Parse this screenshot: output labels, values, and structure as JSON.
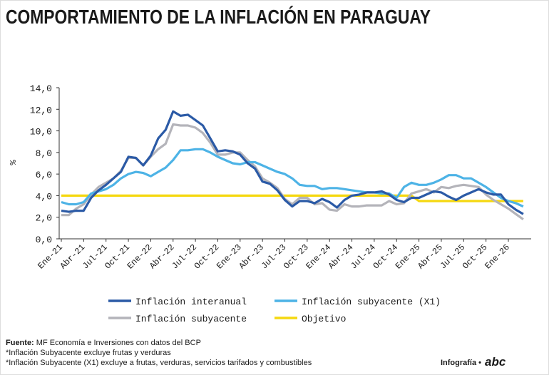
{
  "chart_data": {
    "type": "line",
    "title": "COMPORTAMIENTO DE LA INFLACIÓN EN PARAGUAY",
    "ylabel": "%",
    "categories": [
      "Ene-21",
      null,
      null,
      "Abr-21",
      null,
      null,
      "Jul-21",
      null,
      null,
      "Oct-21",
      null,
      null,
      "Ene-22",
      null,
      null,
      "Abr-22",
      null,
      null,
      "Jul-22",
      null,
      null,
      "Oct-22",
      null,
      null,
      "Ene-23",
      null,
      null,
      "Abr-23",
      null,
      null,
      "Jul-23",
      null,
      null,
      "Oct-23",
      null,
      null,
      "Ene-24",
      null,
      null,
      "Abr-24",
      null,
      null,
      "Jul-24",
      null,
      null,
      "Oct-24",
      null,
      null,
      "Ene-25",
      null,
      null,
      "Abr-25",
      null,
      null,
      "Jul-25",
      null,
      null,
      "Oct-25",
      null,
      null,
      "Ene-26",
      null,
      null
    ],
    "series": [
      {
        "name": "Inflación interanual",
        "color": "#2b5aa6",
        "values": [
          2.6,
          2.5,
          2.6,
          2.6,
          3.8,
          4.5,
          5.0,
          5.6,
          6.2,
          7.6,
          7.5,
          6.8,
          7.7,
          9.3,
          10.1,
          11.8,
          11.4,
          11.5,
          11.0,
          10.5,
          9.3,
          8.1,
          8.2,
          8.1,
          7.8,
          7.0,
          6.5,
          5.3,
          5.1,
          4.5,
          3.6,
          3.0,
          3.5,
          3.5,
          3.3,
          3.7,
          3.4,
          2.9,
          3.6,
          4.0,
          4.1,
          4.3,
          4.3,
          4.4,
          4.1,
          3.6,
          3.4,
          3.8,
          3.8,
          4.1,
          4.4,
          4.3,
          3.9,
          3.6,
          4.0,
          4.3,
          4.6,
          4.3,
          4.1,
          4.1,
          3.2,
          2.7,
          2.3
        ]
      },
      {
        "name": "Inflación subyacente (X1)",
        "color": "#4db3e6",
        "values": [
          3.4,
          3.2,
          3.2,
          3.4,
          4.2,
          4.4,
          4.6,
          5.0,
          5.6,
          6.0,
          6.2,
          6.1,
          5.8,
          6.2,
          6.6,
          7.3,
          8.2,
          8.2,
          8.3,
          8.3,
          8.0,
          7.6,
          7.3,
          7.0,
          6.9,
          7.1,
          7.1,
          6.8,
          6.5,
          6.2,
          6.0,
          5.6,
          5.0,
          4.9,
          4.9,
          4.6,
          4.7,
          4.7,
          4.6,
          4.5,
          4.4,
          4.3,
          4.3,
          4.2,
          4.2,
          3.8,
          4.8,
          5.2,
          5.0,
          5.0,
          5.2,
          5.5,
          5.9,
          5.9,
          5.6,
          5.6,
          5.2,
          4.8,
          4.3,
          3.8,
          3.5,
          3.3,
          3.0
        ]
      },
      {
        "name": "Inflación subyacente",
        "color": "#b4b4ba",
        "values": [
          2.2,
          2.2,
          2.8,
          3.2,
          4.1,
          4.8,
          5.2,
          5.6,
          6.3,
          7.5,
          7.5,
          6.8,
          7.6,
          8.3,
          8.8,
          10.6,
          10.5,
          10.5,
          10.3,
          9.8,
          8.9,
          7.8,
          7.8,
          8.0,
          8.0,
          7.3,
          6.7,
          5.6,
          5.2,
          4.7,
          3.7,
          3.2,
          3.8,
          3.8,
          3.2,
          3.3,
          2.7,
          2.6,
          3.2,
          3.0,
          3.0,
          3.1,
          3.1,
          3.1,
          3.5,
          3.2,
          3.3,
          4.2,
          4.4,
          4.6,
          4.3,
          4.8,
          4.7,
          4.9,
          5.0,
          4.9,
          4.8,
          4.1,
          3.6,
          3.2,
          2.8,
          2.3,
          1.8
        ]
      },
      {
        "name": "Objetivo",
        "color": "#f5d80f",
        "values": [
          4,
          4,
          4,
          4,
          4,
          4,
          4,
          4,
          4,
          4,
          4,
          4,
          4,
          4,
          4,
          4,
          4,
          4,
          4,
          4,
          4,
          4,
          4,
          4,
          4,
          4,
          4,
          4,
          4,
          4,
          4,
          4,
          4,
          4,
          4,
          4,
          4,
          4,
          4,
          4,
          4,
          4,
          4,
          4,
          4,
          4,
          4,
          4,
          3.5,
          3.5,
          3.5,
          3.5,
          3.5,
          3.5,
          3.5,
          3.5,
          3.5,
          3.5,
          3.5,
          3.5,
          3.5,
          3.5,
          3.5
        ]
      }
    ],
    "ylim": [
      0,
      14
    ],
    "yticks": [
      {
        "value": 0,
        "label": "0,0"
      },
      {
        "value": 2,
        "label": "2,0"
      },
      {
        "value": 4,
        "label": "4,0"
      },
      {
        "value": 6,
        "label": "6,0"
      },
      {
        "value": 8,
        "label": "8,0"
      },
      {
        "value": 10,
        "label": "10,0"
      },
      {
        "value": 12,
        "label": "12,0"
      },
      {
        "value": 14,
        "label": "14,0"
      }
    ]
  },
  "footer": {
    "source_label": "Fuente:",
    "source_text": "MF Economía e Inversiones con datos del BCP",
    "notes": [
      "*Inflación Subyacente excluye frutas y verduras",
      "*Inflación Subyacente (X1) excluye a frutas, verduras, servicios tarifados y combustibles"
    ],
    "credit": "Infografía •",
    "logo": "abc"
  }
}
